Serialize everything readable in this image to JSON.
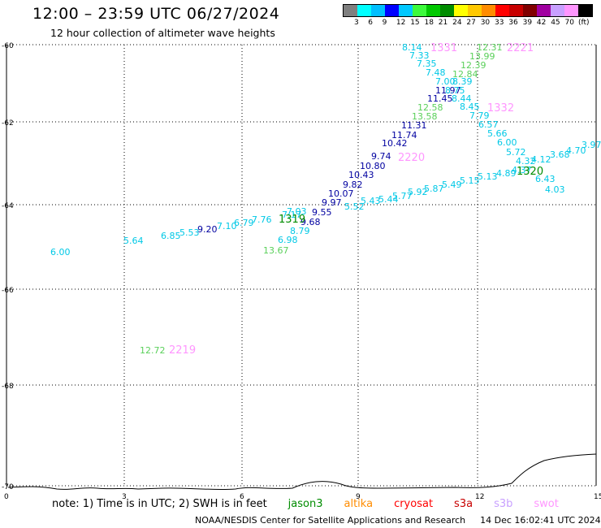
{
  "header": {
    "title": "12:00 – 23:59 UTC 06/27/2024",
    "subtitle": "12 hour collection of altimeter wave heights"
  },
  "legend": {
    "colors": [
      "#7f7f7f",
      "#00ffff",
      "#00bfff",
      "#0000ff",
      "#00c8ff",
      "#3cfa3c",
      "#00c800",
      "#008c00",
      "#ffff00",
      "#ffc800",
      "#ff8c00",
      "#ff0000",
      "#c80000",
      "#800000",
      "#a000a0",
      "#c8a0ff",
      "#ff96ff",
      "#000000"
    ],
    "labels": [
      "3",
      "6",
      "9",
      "12",
      "15",
      "18",
      "21",
      "24",
      "27",
      "30",
      "33",
      "36",
      "39",
      "42",
      "45",
      "70",
      "(ft)"
    ]
  },
  "map": {
    "lat_labels": [
      "-60",
      "-62",
      "-64",
      "-66",
      "-68",
      "-70"
    ],
    "lon_labels": [
      "0",
      "3",
      "6",
      "9",
      "12",
      "15"
    ]
  },
  "readings": [
    {
      "text": "8.14",
      "color": "#00c8e6"
    },
    {
      "text": "7.33",
      "color": "#00c8e6"
    },
    {
      "text": "7.35",
      "color": "#00c8e6"
    },
    {
      "text": "7.48",
      "color": "#00c8e6"
    },
    {
      "text": "7.00",
      "color": "#00c8e6"
    },
    {
      "text": "11.97",
      "color": "#0000a0"
    },
    {
      "text": "11.45",
      "color": "#0000a0"
    },
    {
      "text": "12.58",
      "color": "#5ad05a"
    },
    {
      "text": "13.58",
      "color": "#5ad05a"
    },
    {
      "text": "11.31",
      "color": "#0000a0"
    },
    {
      "text": "11.74",
      "color": "#0000a0"
    },
    {
      "text": "10.42",
      "color": "#0000a0"
    },
    {
      "text": "9.74",
      "color": "#0000a0"
    },
    {
      "text": "10.80",
      "color": "#0000a0"
    },
    {
      "text": "10.43",
      "color": "#0000a0"
    },
    {
      "text": "9.82",
      "color": "#0000a0"
    },
    {
      "text": "10.07",
      "color": "#0000a0"
    },
    {
      "text": "9.97",
      "color": "#0000a0"
    },
    {
      "text": "9.55",
      "color": "#0000a0"
    },
    {
      "text": "9.68",
      "color": "#0000a0"
    },
    {
      "text": "8.79",
      "color": "#00c8e6"
    },
    {
      "text": "6.98",
      "color": "#00c8e6"
    },
    {
      "text": "13.67",
      "color": "#5ad05a"
    },
    {
      "text": "7.03",
      "color": "#00c8e6"
    },
    {
      "text": "7.17",
      "color": "#00c8e6"
    },
    {
      "text": "7.76",
      "color": "#00c8e6"
    },
    {
      "text": "6.79",
      "color": "#00c8e6"
    },
    {
      "text": "7.10",
      "color": "#00c8e6"
    },
    {
      "text": "9.20",
      "color": "#0000a0"
    },
    {
      "text": "5.53",
      "color": "#00c8e6"
    },
    {
      "text": "6.85",
      "color": "#00c8e6"
    },
    {
      "text": "5.64",
      "color": "#00c8e6"
    },
    {
      "text": "6.00",
      "color": "#00c8e6"
    },
    {
      "text": "12.72",
      "color": "#5ad05a"
    },
    {
      "text": "12.31",
      "color": "#5ad05a"
    },
    {
      "text": "13.99",
      "color": "#5ad05a"
    },
    {
      "text": "12.39",
      "color": "#5ad05a"
    },
    {
      "text": "12.84",
      "color": "#5ad05a"
    },
    {
      "text": "8.39",
      "color": "#00c8e6"
    },
    {
      "text": "8.75",
      "color": "#00c8e6"
    },
    {
      "text": "8.44",
      "color": "#00c8e6"
    },
    {
      "text": "8.45",
      "color": "#00c8e6"
    },
    {
      "text": "7.79",
      "color": "#00c8e6"
    },
    {
      "text": "6.57",
      "color": "#00c8e6"
    },
    {
      "text": "5.66",
      "color": "#00c8e6"
    },
    {
      "text": "6.00",
      "color": "#00c8e6"
    },
    {
      "text": "5.72",
      "color": "#00c8e6"
    },
    {
      "text": "4.32",
      "color": "#00c8e6"
    },
    {
      "text": "4.12",
      "color": "#00c8e6"
    },
    {
      "text": "3.68",
      "color": "#00c8e6"
    },
    {
      "text": "4.70",
      "color": "#00c8e6"
    },
    {
      "text": "3.97",
      "color": "#00c8e6"
    },
    {
      "text": "6.43",
      "color": "#00c8e6"
    },
    {
      "text": "4.03",
      "color": "#00c8e6"
    },
    {
      "text": "4.37",
      "color": "#00c8e6"
    },
    {
      "text": "4.89",
      "color": "#00c8e6"
    },
    {
      "text": "5.13",
      "color": "#00c8e6"
    },
    {
      "text": "5.15",
      "color": "#00c8e6"
    },
    {
      "text": "5.49",
      "color": "#00c8e6"
    },
    {
      "text": "5.87",
      "color": "#00c8e6"
    },
    {
      "text": "5.92",
      "color": "#00c8e6"
    },
    {
      "text": "5.77",
      "color": "#00c8e6"
    },
    {
      "text": "5.44",
      "color": "#00c8e6"
    },
    {
      "text": "5.43",
      "color": "#00c8e6"
    },
    {
      "text": "5.52",
      "color": "#00c8e6"
    }
  ],
  "time_labels": [
    {
      "text": "1331",
      "color": "#ff96ff"
    },
    {
      "text": "2221",
      "color": "#ff96ff"
    },
    {
      "text": "1332",
      "color": "#ff96ff"
    },
    {
      "text": "2220",
      "color": "#ff96ff"
    },
    {
      "text": "1320",
      "color": "#008c00"
    },
    {
      "text": "1319",
      "color": "#008c00"
    },
    {
      "text": "2219",
      "color": "#ff96ff"
    }
  ],
  "footer": {
    "note": "note:  1) Time is in UTC; 2) SWH is in feet",
    "satellites": [
      {
        "name": "jason3",
        "color": "#008c00"
      },
      {
        "name": "altika",
        "color": "#ff8c00"
      },
      {
        "name": "cryosat",
        "color": "#ff0000"
      },
      {
        "name": "s3a",
        "color": "#c80000"
      },
      {
        "name": "s3b",
        "color": "#c8a0ff"
      },
      {
        "name": "swot",
        "color": "#ff96ff"
      }
    ],
    "credit": "NOAA/NESDIS Center for Satellite Applications and Research",
    "timestamp": "14 Dec 16:02:41 UTC 2024"
  }
}
